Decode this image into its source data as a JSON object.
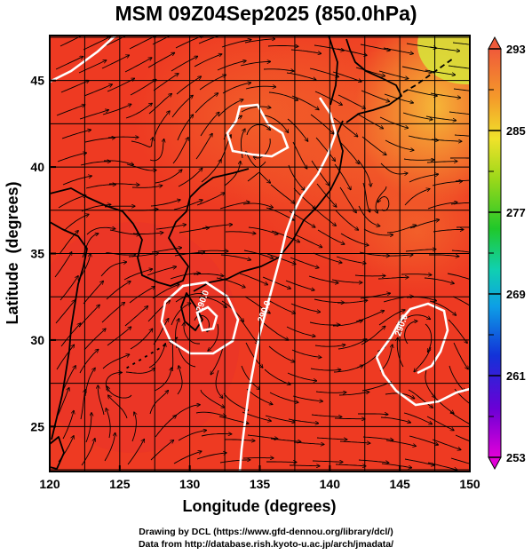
{
  "title": "MSM 09Z04Sep2025 (850.0hPa)",
  "x_axis": {
    "label": "Longitude (degrees)",
    "ticks": [
      {
        "value": 120,
        "label": "120"
      },
      {
        "value": 125,
        "label": "125"
      },
      {
        "value": 130,
        "label": "130"
      },
      {
        "value": 135,
        "label": "135"
      },
      {
        "value": 140,
        "label": "140"
      },
      {
        "value": 145,
        "label": "145"
      },
      {
        "value": 150,
        "label": "150"
      }
    ],
    "range": [
      120,
      150
    ]
  },
  "y_axis": {
    "label": "Latitude  (degrees)",
    "ticks": [
      {
        "value": 25,
        "label": "25"
      },
      {
        "value": 30,
        "label": "30"
      },
      {
        "value": 35,
        "label": "35"
      },
      {
        "value": 40,
        "label": "40"
      },
      {
        "value": 45,
        "label": "45"
      }
    ],
    "range": [
      22.4,
      47.6
    ]
  },
  "colorbar": {
    "ticks": [
      {
        "value": 293,
        "label": "293"
      },
      {
        "value": 285,
        "label": "285"
      },
      {
        "value": 277,
        "label": "277"
      },
      {
        "value": 269,
        "label": "269"
      },
      {
        "value": 261,
        "label": "261"
      },
      {
        "value": 253,
        "label": "253"
      }
    ],
    "range": [
      253,
      293
    ]
  },
  "contour_labels": [
    {
      "text": "290.0",
      "lon": 135.5,
      "lat": 31.6
    },
    {
      "text": "290.0",
      "lon": 145.3,
      "lat": 30.8
    },
    {
      "text": "290.0",
      "lon": 131.1,
      "lat": 32.2
    }
  ],
  "footer": {
    "line1": "Drawing by DCL (https://www.gfd-dennou.org/library/dcl/)",
    "line2": "Data from http://database.rish.kyoto-u.ac.jp/arch/jmadata/"
  },
  "colors": {
    "background_field": "#ee3a22",
    "contour": "#ffffff",
    "streamline": "#000000",
    "coastline": "#000000"
  }
}
